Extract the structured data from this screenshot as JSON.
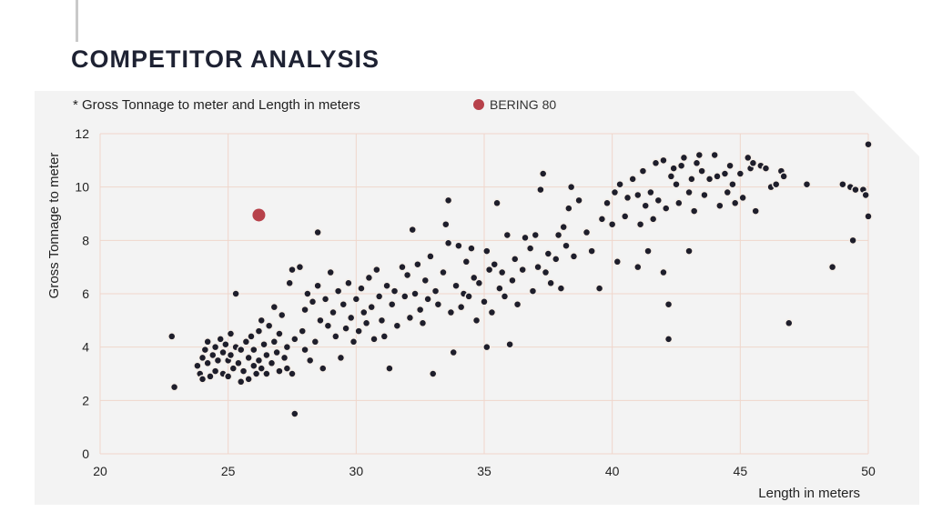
{
  "page": {
    "title": "COMPETITOR ANALYSIS"
  },
  "colors": {
    "title": "#1e2233",
    "panel": "#f3f3f3",
    "grid": "#f0d6cb",
    "point_fill": "#1e1e2b",
    "point_stroke": "#f4eee8",
    "highlight": "#b7414a",
    "text": "#222222"
  },
  "chart_data": {
    "type": "scatter",
    "subtitle": "* Gross Tonnage to meter and Length in meters",
    "xlabel": "Length in meters",
    "ylabel": "Gross Tonnage to meter",
    "xlim": [
      20,
      50
    ],
    "ylim": [
      0,
      12
    ],
    "xticks": [
      20,
      25,
      30,
      35,
      40,
      45,
      50
    ],
    "yticks": [
      0,
      2,
      4,
      6,
      8,
      10,
      12
    ],
    "grid": true,
    "legend_position": "top",
    "highlight": {
      "name": "BERING 80",
      "x": 26.2,
      "y": 8.95
    },
    "series": [
      {
        "name": "",
        "points": [
          [
            22.8,
            4.4
          ],
          [
            22.9,
            2.5
          ],
          [
            23.8,
            3.3
          ],
          [
            23.9,
            3.0
          ],
          [
            24.0,
            3.6
          ],
          [
            24.0,
            2.8
          ],
          [
            24.1,
            3.9
          ],
          [
            24.2,
            4.2
          ],
          [
            24.2,
            3.4
          ],
          [
            24.3,
            2.9
          ],
          [
            24.4,
            3.7
          ],
          [
            24.5,
            4.0
          ],
          [
            24.5,
            3.1
          ],
          [
            24.6,
            3.5
          ],
          [
            24.7,
            4.3
          ],
          [
            24.8,
            3.8
          ],
          [
            24.8,
            3.0
          ],
          [
            24.9,
            4.1
          ],
          [
            25.0,
            3.5
          ],
          [
            25.0,
            2.9
          ],
          [
            25.1,
            3.7
          ],
          [
            25.1,
            4.5
          ],
          [
            25.2,
            3.2
          ],
          [
            25.3,
            4.0
          ],
          [
            25.3,
            6.0
          ],
          [
            25.4,
            3.4
          ],
          [
            25.5,
            2.7
          ],
          [
            25.5,
            3.9
          ],
          [
            25.6,
            3.1
          ],
          [
            25.7,
            4.2
          ],
          [
            25.8,
            3.6
          ],
          [
            25.8,
            2.8
          ],
          [
            25.9,
            4.4
          ],
          [
            26.0,
            3.3
          ],
          [
            26.0,
            3.9
          ],
          [
            26.1,
            3.0
          ],
          [
            26.2,
            4.6
          ],
          [
            26.2,
            3.5
          ],
          [
            26.3,
            5.0
          ],
          [
            26.3,
            3.2
          ],
          [
            26.4,
            4.1
          ],
          [
            26.5,
            3.7
          ],
          [
            26.5,
            3.0
          ],
          [
            26.6,
            4.8
          ],
          [
            26.7,
            3.4
          ],
          [
            26.8,
            4.2
          ],
          [
            26.8,
            5.5
          ],
          [
            26.9,
            3.8
          ],
          [
            27.0,
            3.1
          ],
          [
            27.0,
            4.5
          ],
          [
            27.1,
            5.2
          ],
          [
            27.2,
            3.6
          ],
          [
            27.3,
            4.0
          ],
          [
            27.3,
            3.2
          ],
          [
            27.4,
            6.4
          ],
          [
            27.5,
            3.0
          ],
          [
            27.5,
            6.9
          ],
          [
            27.6,
            4.3
          ],
          [
            27.6,
            1.5
          ],
          [
            27.8,
            7.0
          ],
          [
            27.9,
            4.6
          ],
          [
            28.0,
            5.4
          ],
          [
            28.0,
            3.9
          ],
          [
            28.1,
            6.0
          ],
          [
            28.2,
            3.5
          ],
          [
            28.3,
            5.7
          ],
          [
            28.4,
            4.2
          ],
          [
            28.5,
            8.3
          ],
          [
            28.5,
            6.3
          ],
          [
            28.6,
            5.0
          ],
          [
            28.7,
            3.2
          ],
          [
            28.8,
            5.8
          ],
          [
            28.9,
            4.8
          ],
          [
            29.0,
            6.8
          ],
          [
            29.1,
            5.3
          ],
          [
            29.2,
            4.4
          ],
          [
            29.3,
            6.1
          ],
          [
            29.4,
            3.6
          ],
          [
            29.5,
            5.6
          ],
          [
            29.6,
            4.7
          ],
          [
            29.7,
            6.4
          ],
          [
            29.8,
            5.1
          ],
          [
            29.9,
            4.2
          ],
          [
            30.0,
            5.8
          ],
          [
            30.1,
            4.6
          ],
          [
            30.2,
            6.2
          ],
          [
            30.3,
            5.3
          ],
          [
            30.4,
            4.9
          ],
          [
            30.5,
            6.6
          ],
          [
            30.6,
            5.5
          ],
          [
            30.7,
            4.3
          ],
          [
            30.8,
            6.9
          ],
          [
            30.9,
            5.9
          ],
          [
            31.0,
            5.0
          ],
          [
            31.1,
            4.4
          ],
          [
            31.2,
            6.3
          ],
          [
            31.3,
            3.2
          ],
          [
            31.4,
            5.6
          ],
          [
            31.5,
            6.1
          ],
          [
            31.6,
            4.8
          ],
          [
            31.8,
            7.0
          ],
          [
            31.9,
            5.9
          ],
          [
            32.0,
            6.7
          ],
          [
            32.1,
            5.1
          ],
          [
            32.2,
            8.4
          ],
          [
            32.3,
            6.0
          ],
          [
            32.4,
            7.1
          ],
          [
            32.5,
            5.4
          ],
          [
            32.6,
            4.9
          ],
          [
            32.7,
            6.5
          ],
          [
            32.8,
            5.8
          ],
          [
            32.9,
            7.4
          ],
          [
            33.0,
            3.0
          ],
          [
            33.1,
            6.1
          ],
          [
            33.2,
            5.6
          ],
          [
            33.4,
            6.8
          ],
          [
            33.5,
            8.6
          ],
          [
            33.6,
            9.5
          ],
          [
            33.6,
            7.9
          ],
          [
            33.7,
            5.3
          ],
          [
            33.8,
            3.8
          ],
          [
            33.9,
            6.3
          ],
          [
            34.0,
            7.8
          ],
          [
            34.1,
            5.5
          ],
          [
            34.2,
            6.0
          ],
          [
            34.3,
            7.2
          ],
          [
            34.4,
            5.9
          ],
          [
            34.5,
            7.7
          ],
          [
            34.6,
            6.6
          ],
          [
            34.7,
            5.0
          ],
          [
            34.8,
            6.4
          ],
          [
            35.0,
            5.7
          ],
          [
            35.1,
            7.6
          ],
          [
            35.1,
            4.0
          ],
          [
            35.2,
            6.9
          ],
          [
            35.3,
            5.3
          ],
          [
            35.4,
            7.1
          ],
          [
            35.5,
            9.4
          ],
          [
            35.6,
            6.2
          ],
          [
            35.7,
            6.8
          ],
          [
            35.8,
            5.9
          ],
          [
            35.9,
            8.2
          ],
          [
            36.0,
            4.1
          ],
          [
            36.1,
            6.5
          ],
          [
            36.2,
            7.3
          ],
          [
            36.3,
            5.6
          ],
          [
            36.5,
            6.9
          ],
          [
            36.6,
            8.1
          ],
          [
            36.8,
            7.7
          ],
          [
            36.9,
            6.1
          ],
          [
            37.0,
            8.2
          ],
          [
            37.1,
            7.0
          ],
          [
            37.2,
            9.9
          ],
          [
            37.3,
            10.5
          ],
          [
            37.4,
            6.8
          ],
          [
            37.5,
            7.5
          ],
          [
            37.6,
            6.4
          ],
          [
            37.8,
            7.3
          ],
          [
            37.9,
            8.2
          ],
          [
            38.0,
            6.2
          ],
          [
            38.1,
            8.5
          ],
          [
            38.2,
            7.8
          ],
          [
            38.3,
            9.2
          ],
          [
            38.4,
            10.0
          ],
          [
            38.5,
            7.4
          ],
          [
            38.7,
            9.5
          ],
          [
            39.0,
            8.3
          ],
          [
            39.2,
            7.6
          ],
          [
            39.5,
            6.2
          ],
          [
            39.6,
            8.8
          ],
          [
            39.8,
            9.4
          ],
          [
            40.0,
            8.6
          ],
          [
            40.1,
            9.8
          ],
          [
            40.2,
            7.2
          ],
          [
            40.3,
            10.1
          ],
          [
            40.5,
            8.9
          ],
          [
            40.6,
            9.6
          ],
          [
            40.8,
            10.3
          ],
          [
            41.0,
            9.7
          ],
          [
            41.0,
            7.0
          ],
          [
            41.1,
            8.6
          ],
          [
            41.2,
            10.6
          ],
          [
            41.3,
            9.3
          ],
          [
            41.4,
            7.6
          ],
          [
            41.5,
            9.8
          ],
          [
            41.6,
            8.8
          ],
          [
            41.7,
            10.9
          ],
          [
            41.8,
            9.5
          ],
          [
            42.0,
            11.0
          ],
          [
            42.0,
            6.8
          ],
          [
            42.1,
            9.2
          ],
          [
            42.2,
            4.3
          ],
          [
            42.2,
            5.6
          ],
          [
            42.3,
            10.4
          ],
          [
            42.4,
            10.7
          ],
          [
            42.5,
            10.1
          ],
          [
            42.6,
            9.4
          ],
          [
            42.7,
            10.8
          ],
          [
            42.8,
            11.1
          ],
          [
            43.0,
            9.8
          ],
          [
            43.0,
            7.6
          ],
          [
            43.1,
            10.3
          ],
          [
            43.2,
            9.1
          ],
          [
            43.3,
            10.9
          ],
          [
            43.4,
            11.2
          ],
          [
            43.5,
            10.6
          ],
          [
            43.6,
            9.7
          ],
          [
            43.8,
            10.3
          ],
          [
            44.0,
            11.2
          ],
          [
            44.1,
            10.4
          ],
          [
            44.2,
            9.3
          ],
          [
            44.4,
            10.5
          ],
          [
            44.5,
            9.8
          ],
          [
            44.6,
            10.8
          ],
          [
            44.7,
            10.1
          ],
          [
            44.8,
            9.4
          ],
          [
            45.0,
            10.5
          ],
          [
            45.1,
            9.6
          ],
          [
            45.3,
            11.1
          ],
          [
            45.4,
            10.7
          ],
          [
            45.5,
            10.9
          ],
          [
            45.6,
            9.1
          ],
          [
            45.8,
            10.8
          ],
          [
            46.0,
            10.7
          ],
          [
            46.2,
            10.0
          ],
          [
            46.4,
            10.1
          ],
          [
            46.6,
            10.6
          ],
          [
            46.7,
            10.4
          ],
          [
            46.9,
            4.9
          ],
          [
            47.6,
            10.1
          ],
          [
            48.6,
            7.0
          ],
          [
            49.0,
            10.1
          ],
          [
            49.3,
            10.0
          ],
          [
            49.4,
            8.0
          ],
          [
            49.5,
            9.9
          ],
          [
            49.8,
            9.9
          ],
          [
            49.9,
            9.7
          ],
          [
            50.0,
            11.6
          ],
          [
            50.0,
            8.9
          ]
        ]
      }
    ]
  }
}
